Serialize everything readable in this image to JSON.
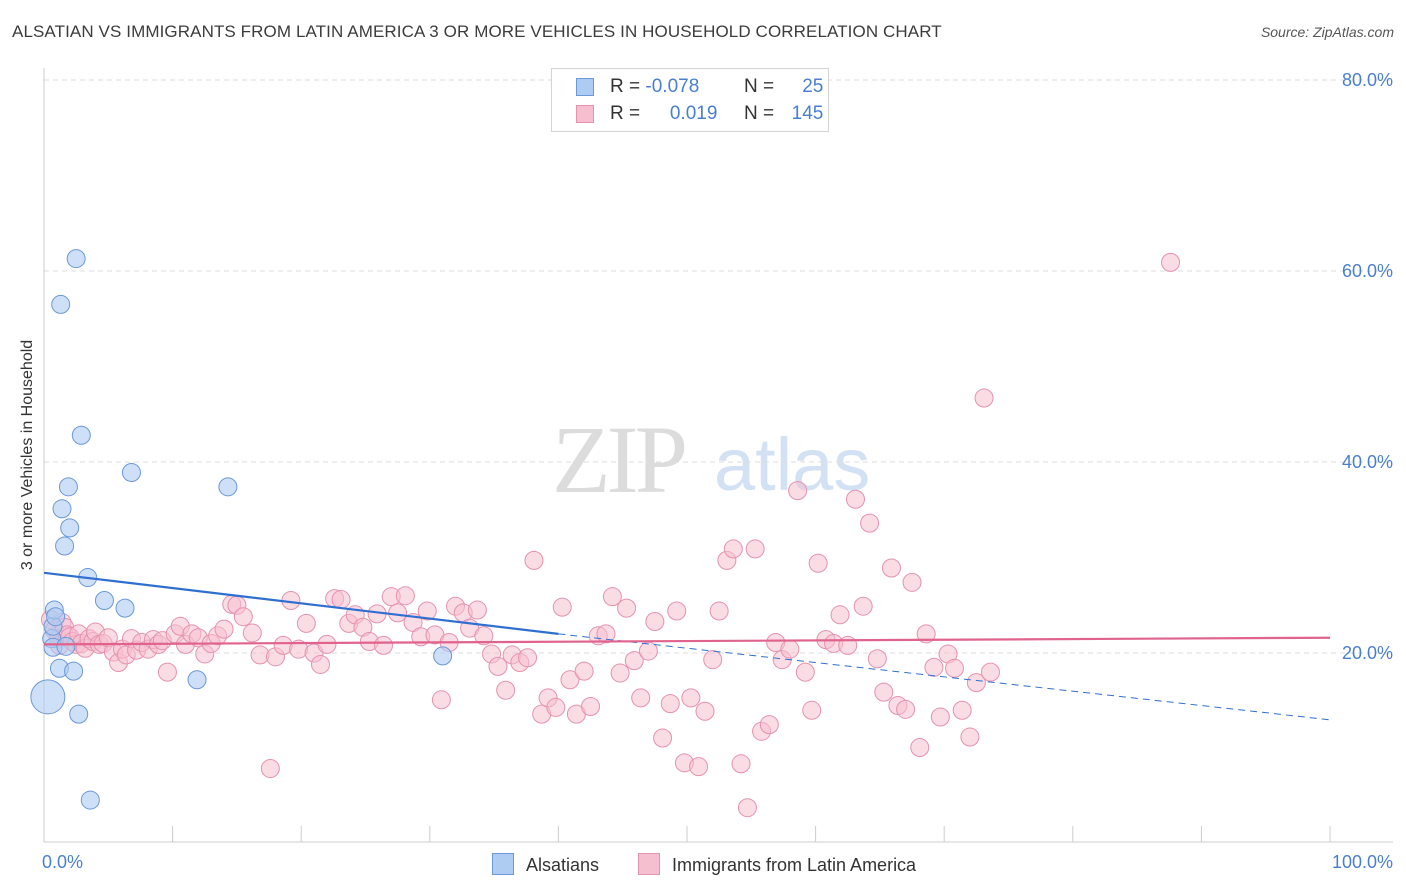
{
  "header": {
    "title": "ALSATIAN VS IMMIGRANTS FROM LATIN AMERICA 3 OR MORE VEHICLES IN HOUSEHOLD CORRELATION CHART",
    "source": "Source: ZipAtlas.com"
  },
  "watermark": {
    "zip": "ZIP",
    "atlas": "atlas"
  },
  "legend": {
    "rows": [
      {
        "r_label": "R =",
        "r_value": "-0.078",
        "n_label": "N =",
        "n_value": "25"
      },
      {
        "r_label": "R =",
        "r_value": "0.019",
        "n_label": "N =",
        "n_value": "145"
      }
    ]
  },
  "colors": {
    "blue_fill": "#aecbf2",
    "blue_stroke": "#6a98d8",
    "blue_line": "#2f6fd0",
    "pink_fill": "#f6bfd0",
    "pink_stroke": "#e592b0",
    "pink_line": "#e0638e",
    "axis_text": "#4a7fd0",
    "grid": "#dddddd"
  },
  "chart_data": {
    "type": "scatter",
    "title": "ALSATIAN VS IMMIGRANTS FROM LATIN AMERICA 3 OR MORE VEHICLES IN HOUSEHOLD CORRELATION CHART",
    "xlabel": "",
    "ylabel": "3 or more Vehicles in Household",
    "xlim": [
      0,
      100
    ],
    "ylim": [
      0,
      84
    ],
    "x_tick_labels": [
      "0.0%",
      "100.0%"
    ],
    "y_tick_labels": [
      "20.0%",
      "40.0%",
      "60.0%",
      "80.0%"
    ],
    "y_ticks": [
      20,
      40,
      60,
      80
    ],
    "grid": true,
    "legend_position": "top-center",
    "series": [
      {
        "name": "Alsatians",
        "color": "#aecbf2",
        "points": [
          [
            0.3,
            15.4
          ],
          [
            0.6,
            21.5
          ],
          [
            0.7,
            22.8
          ],
          [
            0.7,
            20.6
          ],
          [
            0.8,
            24.5
          ],
          [
            0.9,
            23.8
          ],
          [
            1.2,
            18.4
          ],
          [
            1.3,
            56.5
          ],
          [
            1.4,
            35.1
          ],
          [
            1.6,
            31.2
          ],
          [
            1.7,
            20.7
          ],
          [
            1.9,
            37.4
          ],
          [
            2.0,
            33.1
          ],
          [
            2.3,
            18.1
          ],
          [
            2.5,
            61.3
          ],
          [
            2.7,
            13.6
          ],
          [
            2.9,
            42.8
          ],
          [
            3.4,
            27.9
          ],
          [
            3.6,
            4.6
          ],
          [
            4.7,
            25.5
          ],
          [
            6.3,
            24.7
          ],
          [
            6.8,
            38.9
          ],
          [
            11.9,
            17.2
          ],
          [
            14.3,
            37.4
          ],
          [
            31.0,
            19.7
          ]
        ],
        "fit_line": {
          "x": [
            0,
            40
          ],
          "y": [
            28.4,
            22.0
          ],
          "dashed_extension": {
            "x": [
              40,
              100
            ],
            "y": [
              22.0,
              13.0
            ]
          }
        }
      },
      {
        "name": "Immigrants from Latin America",
        "color": "#f6bfd0",
        "points": [
          [
            0.5,
            23.5
          ],
          [
            0.8,
            22.4
          ],
          [
            1.1,
            21.5
          ],
          [
            1.2,
            20.8
          ],
          [
            1.4,
            23.2
          ],
          [
            1.6,
            22.7
          ],
          [
            1.8,
            21.9
          ],
          [
            2.0,
            21.7
          ],
          [
            2.2,
            21.2
          ],
          [
            2.5,
            20.9
          ],
          [
            2.7,
            22.0
          ],
          [
            2.9,
            21.0
          ],
          [
            3.2,
            20.5
          ],
          [
            3.5,
            21.5
          ],
          [
            3.8,
            21.2
          ],
          [
            4.0,
            22.2
          ],
          [
            4.3,
            20.9
          ],
          [
            4.6,
            21.0
          ],
          [
            5.0,
            21.6
          ],
          [
            5.4,
            20.1
          ],
          [
            5.8,
            19.0
          ],
          [
            6.1,
            20.4
          ],
          [
            6.4,
            19.8
          ],
          [
            6.8,
            21.5
          ],
          [
            7.2,
            20.3
          ],
          [
            7.6,
            21.1
          ],
          [
            8.1,
            20.4
          ],
          [
            8.5,
            21.4
          ],
          [
            8.9,
            20.9
          ],
          [
            9.2,
            21.3
          ],
          [
            9.6,
            18.0
          ],
          [
            10.2,
            22.0
          ],
          [
            10.6,
            22.8
          ],
          [
            11.0,
            20.9
          ],
          [
            11.5,
            22.0
          ],
          [
            12.0,
            21.6
          ],
          [
            12.5,
            19.9
          ],
          [
            13.0,
            21.0
          ],
          [
            13.5,
            21.8
          ],
          [
            14.0,
            22.5
          ],
          [
            14.6,
            25.1
          ],
          [
            15.0,
            25.0
          ],
          [
            15.5,
            23.8
          ],
          [
            16.2,
            22.1
          ],
          [
            16.8,
            19.8
          ],
          [
            17.6,
            7.9
          ],
          [
            18.0,
            19.6
          ],
          [
            18.6,
            20.8
          ],
          [
            19.2,
            25.5
          ],
          [
            19.8,
            20.4
          ],
          [
            20.4,
            23.1
          ],
          [
            21.0,
            20.0
          ],
          [
            21.5,
            18.8
          ],
          [
            22.0,
            20.9
          ],
          [
            22.6,
            25.7
          ],
          [
            23.1,
            25.6
          ],
          [
            23.7,
            23.1
          ],
          [
            24.2,
            24.0
          ],
          [
            24.8,
            22.7
          ],
          [
            25.3,
            21.2
          ],
          [
            25.9,
            24.1
          ],
          [
            26.4,
            20.8
          ],
          [
            27.0,
            25.9
          ],
          [
            27.5,
            24.2
          ],
          [
            28.1,
            26.0
          ],
          [
            28.7,
            23.2
          ],
          [
            29.3,
            21.7
          ],
          [
            29.8,
            24.4
          ],
          [
            30.4,
            21.9
          ],
          [
            30.9,
            15.1
          ],
          [
            31.5,
            21.1
          ],
          [
            32.0,
            24.9
          ],
          [
            32.6,
            24.2
          ],
          [
            33.1,
            22.6
          ],
          [
            33.7,
            24.5
          ],
          [
            34.2,
            21.8
          ],
          [
            34.8,
            19.9
          ],
          [
            35.3,
            18.6
          ],
          [
            35.9,
            16.1
          ],
          [
            36.4,
            19.8
          ],
          [
            37.0,
            19.0
          ],
          [
            37.6,
            19.5
          ],
          [
            38.1,
            29.7
          ],
          [
            38.7,
            13.6
          ],
          [
            39.2,
            15.3
          ],
          [
            39.8,
            14.3
          ],
          [
            40.3,
            24.8
          ],
          [
            40.9,
            17.2
          ],
          [
            41.4,
            13.6
          ],
          [
            42.0,
            18.1
          ],
          [
            42.5,
            14.4
          ],
          [
            43.1,
            21.8
          ],
          [
            43.7,
            22.0
          ],
          [
            44.2,
            25.9
          ],
          [
            44.8,
            17.9
          ],
          [
            45.3,
            24.7
          ],
          [
            45.9,
            19.2
          ],
          [
            46.4,
            15.3
          ],
          [
            47.0,
            20.2
          ],
          [
            47.5,
            23.3
          ],
          [
            48.1,
            11.1
          ],
          [
            48.7,
            14.7
          ],
          [
            49.2,
            24.4
          ],
          [
            49.8,
            8.5
          ],
          [
            50.3,
            15.3
          ],
          [
            50.9,
            8.1
          ],
          [
            51.4,
            13.9
          ],
          [
            52.0,
            19.3
          ],
          [
            52.5,
            24.4
          ],
          [
            53.1,
            29.7
          ],
          [
            53.6,
            30.9
          ],
          [
            54.2,
            8.4
          ],
          [
            54.7,
            3.8
          ],
          [
            55.3,
            30.9
          ],
          [
            55.8,
            11.8
          ],
          [
            56.4,
            12.5
          ],
          [
            56.9,
            21.1
          ],
          [
            57.4,
            19.3
          ],
          [
            58.0,
            20.4
          ],
          [
            58.6,
            37.0
          ],
          [
            59.2,
            18.0
          ],
          [
            59.7,
            14.0
          ],
          [
            60.2,
            29.4
          ],
          [
            60.8,
            21.4
          ],
          [
            61.4,
            21.0
          ],
          [
            61.9,
            24.0
          ],
          [
            62.5,
            20.8
          ],
          [
            63.1,
            36.1
          ],
          [
            63.7,
            24.9
          ],
          [
            64.2,
            33.6
          ],
          [
            64.8,
            19.4
          ],
          [
            65.3,
            15.9
          ],
          [
            65.9,
            28.9
          ],
          [
            66.4,
            14.5
          ],
          [
            67.0,
            14.1
          ],
          [
            67.5,
            27.4
          ],
          [
            68.1,
            10.1
          ],
          [
            68.6,
            22.0
          ],
          [
            69.2,
            18.5
          ],
          [
            69.7,
            13.3
          ],
          [
            70.3,
            19.9
          ],
          [
            70.8,
            18.4
          ],
          [
            71.4,
            14.0
          ],
          [
            72.0,
            11.2
          ],
          [
            72.5,
            16.9
          ],
          [
            73.1,
            46.7
          ],
          [
            73.6,
            18.0
          ],
          [
            87.6,
            60.9
          ]
        ],
        "fit_line": {
          "x": [
            0,
            100
          ],
          "y": [
            20.9,
            21.6
          ]
        }
      }
    ]
  },
  "bottom_legend": {
    "items": [
      "Alsatians",
      "Immigrants from Latin America"
    ]
  }
}
